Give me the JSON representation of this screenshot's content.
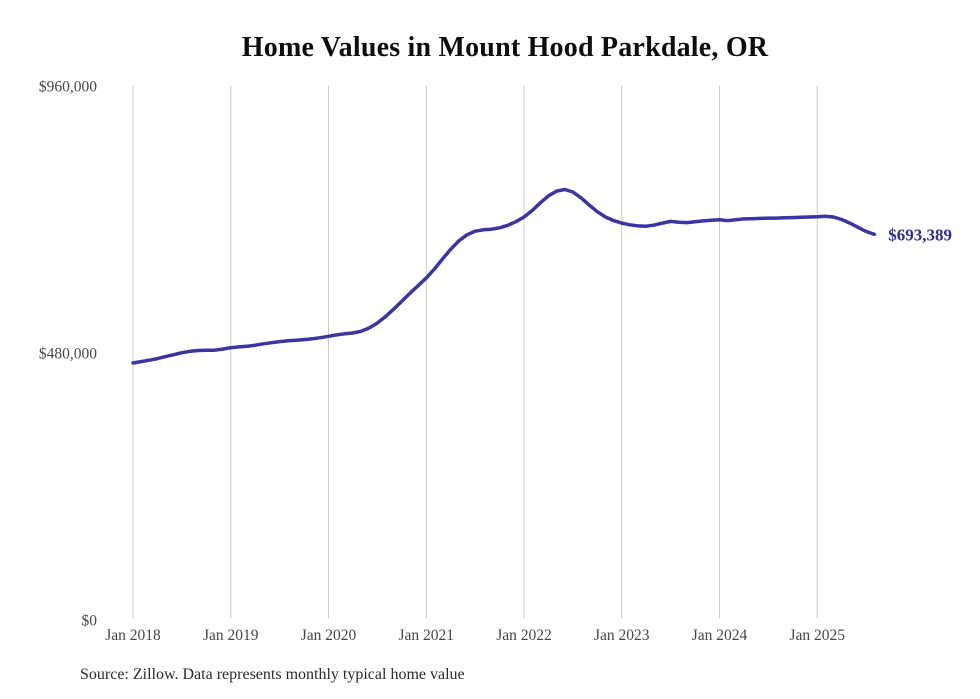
{
  "title": "Home Values in Mount Hood Parkdale, OR",
  "source_note": "Source: Zillow. Data represents monthly typical home value",
  "colors": {
    "line": "#3b34a1",
    "end_label": "#2f2c96",
    "grid": "#c9c9c9",
    "axis_text": "#474747",
    "title_text": "#0d0d0d",
    "source_text": "#2b2b2b",
    "background": "#ffffff"
  },
  "chart_data": {
    "type": "line",
    "title": "Home Values in Mount Hood Parkdale, OR",
    "xlabel": "",
    "ylabel": "",
    "ylim": [
      0,
      960000
    ],
    "grid": "vertical-only",
    "legend": "none",
    "y_ticks": [
      {
        "value": 0,
        "label": "$0"
      },
      {
        "value": 480000,
        "label": "$480,000"
      },
      {
        "value": 960000,
        "label": "$960,000"
      }
    ],
    "x_ticks": [
      {
        "month_index": 0,
        "label": "Jan 2018"
      },
      {
        "month_index": 12,
        "label": "Jan 2019"
      },
      {
        "month_index": 24,
        "label": "Jan 2020"
      },
      {
        "month_index": 36,
        "label": "Jan 2021"
      },
      {
        "month_index": 48,
        "label": "Jan 2022"
      },
      {
        "month_index": 60,
        "label": "Jan 2023"
      },
      {
        "month_index": 72,
        "label": "Jan 2024"
      },
      {
        "month_index": 84,
        "label": "Jan 2025"
      }
    ],
    "series": [
      {
        "name": "Monthly typical home value",
        "start_month": "2018-01",
        "frequency": "monthly",
        "values": [
          462000,
          464500,
          467000,
          470000,
          473500,
          477000,
          480500,
          483000,
          484500,
          484800,
          485000,
          487000,
          489500,
          491000,
          492000,
          494000,
          496500,
          498500,
          500500,
          502000,
          503000,
          504000,
          505500,
          507500,
          510000,
          512500,
          514500,
          516000,
          519000,
          525000,
          534000,
          545500,
          559000,
          573000,
          587500,
          601000,
          615000,
          631000,
          649000,
          666500,
          681500,
          692500,
          699000,
          701500,
          702500,
          705000,
          709500,
          716000,
          724500,
          736000,
          750000,
          762500,
          771000,
          774000,
          769500,
          759000,
          746000,
          734000,
          724500,
          718000,
          713500,
          710500,
          708500,
          708000,
          710000,
          713500,
          716500,
          715000,
          714500,
          716000,
          717500,
          718500,
          719500,
          718000,
          719500,
          721000,
          721500,
          722000,
          722500,
          722500,
          723000,
          723500,
          724000,
          724500,
          725000,
          726000,
          724500,
          720000,
          713500,
          706000,
          698500,
          693389
        ]
      }
    ],
    "end_annotation": {
      "text": "$693,389",
      "value": 693389,
      "month": "2025-08"
    }
  }
}
